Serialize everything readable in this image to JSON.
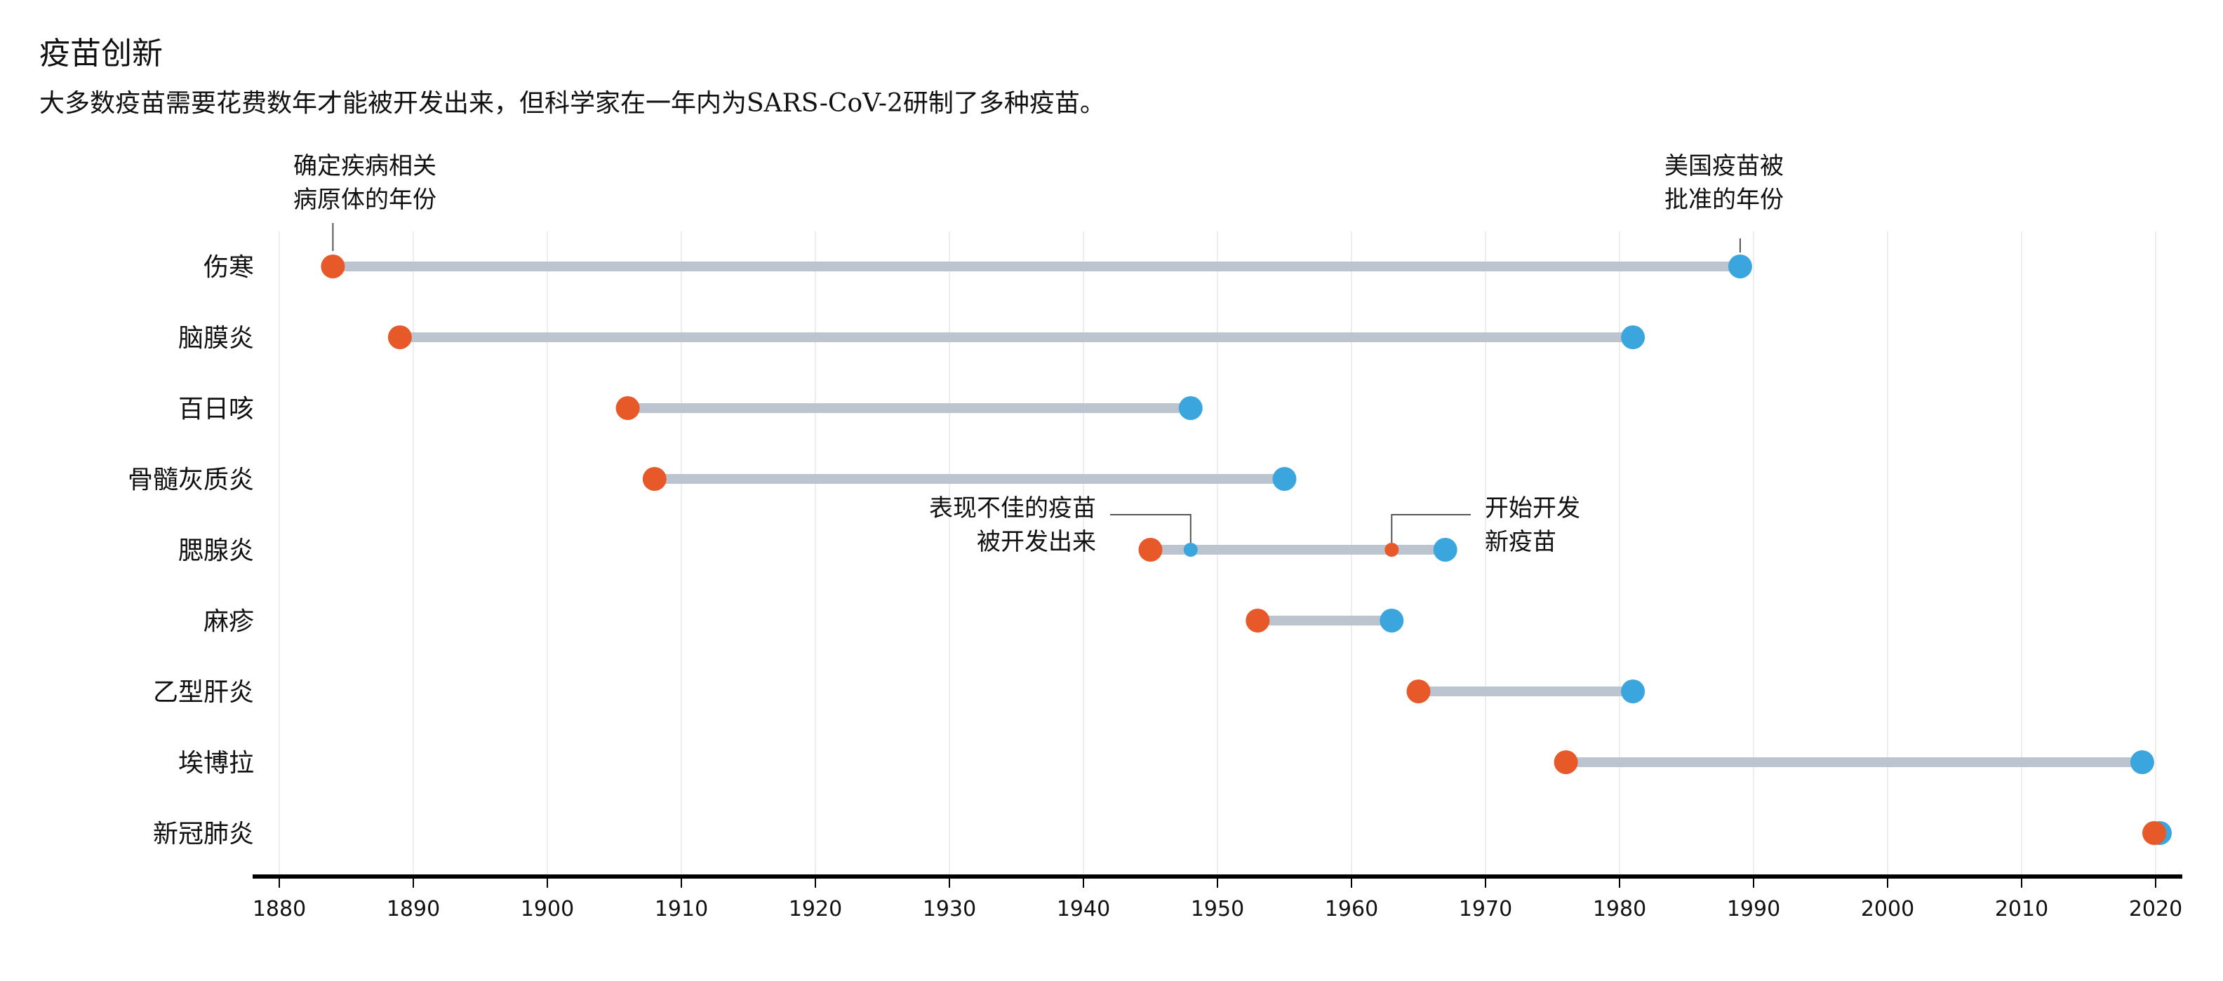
{
  "title": "疫苗创新",
  "subtitle": "大多数疫苗需要花费数年才能被开发出来，但科学家在一年内为SARS-CoV-2研制了多种疫苗。",
  "colors": {
    "identified": "#e8592a",
    "approved": "#3aa6dd",
    "bar": "#bcc5cf",
    "grid": "#eceef0",
    "axis": "#000000"
  },
  "chart_data": {
    "type": "dumbbell",
    "xlim": [
      1880,
      2020
    ],
    "xticks": [
      1880,
      1890,
      1900,
      1910,
      1920,
      1930,
      1940,
      1950,
      1960,
      1970,
      1980,
      1990,
      2000,
      2010,
      2020
    ],
    "grid": true,
    "rows": [
      {
        "label": "伤寒",
        "start": 1884,
        "end": 1989
      },
      {
        "label": "脑膜炎",
        "start": 1889,
        "end": 1981
      },
      {
        "label": "百日咳",
        "start": 1906,
        "end": 1948
      },
      {
        "label": "骨髓灰质炎",
        "start": 1908,
        "end": 1955
      },
      {
        "label": "腮腺炎",
        "start": 1945,
        "end": 1967,
        "extra_points": [
          {
            "year": 1948,
            "kind": "approved"
          },
          {
            "year": 1963,
            "kind": "identified"
          }
        ]
      },
      {
        "label": "麻疹",
        "start": 1953,
        "end": 1963
      },
      {
        "label": "乙型肝炎",
        "start": 1965,
        "end": 1981
      },
      {
        "label": "埃博拉",
        "start": 1976,
        "end": 2019
      },
      {
        "label": "新冠肺炎",
        "start": 2020,
        "end": 2020
      }
    ],
    "annotations": {
      "identified": "确定疾病相关\n病原体的年份",
      "approved": "美国疫苗被\n批准的年份",
      "poor_vaccine": "表现不佳的疫苗\n被开发出来",
      "new_vaccine": "开始开发\n新疫苗"
    }
  }
}
